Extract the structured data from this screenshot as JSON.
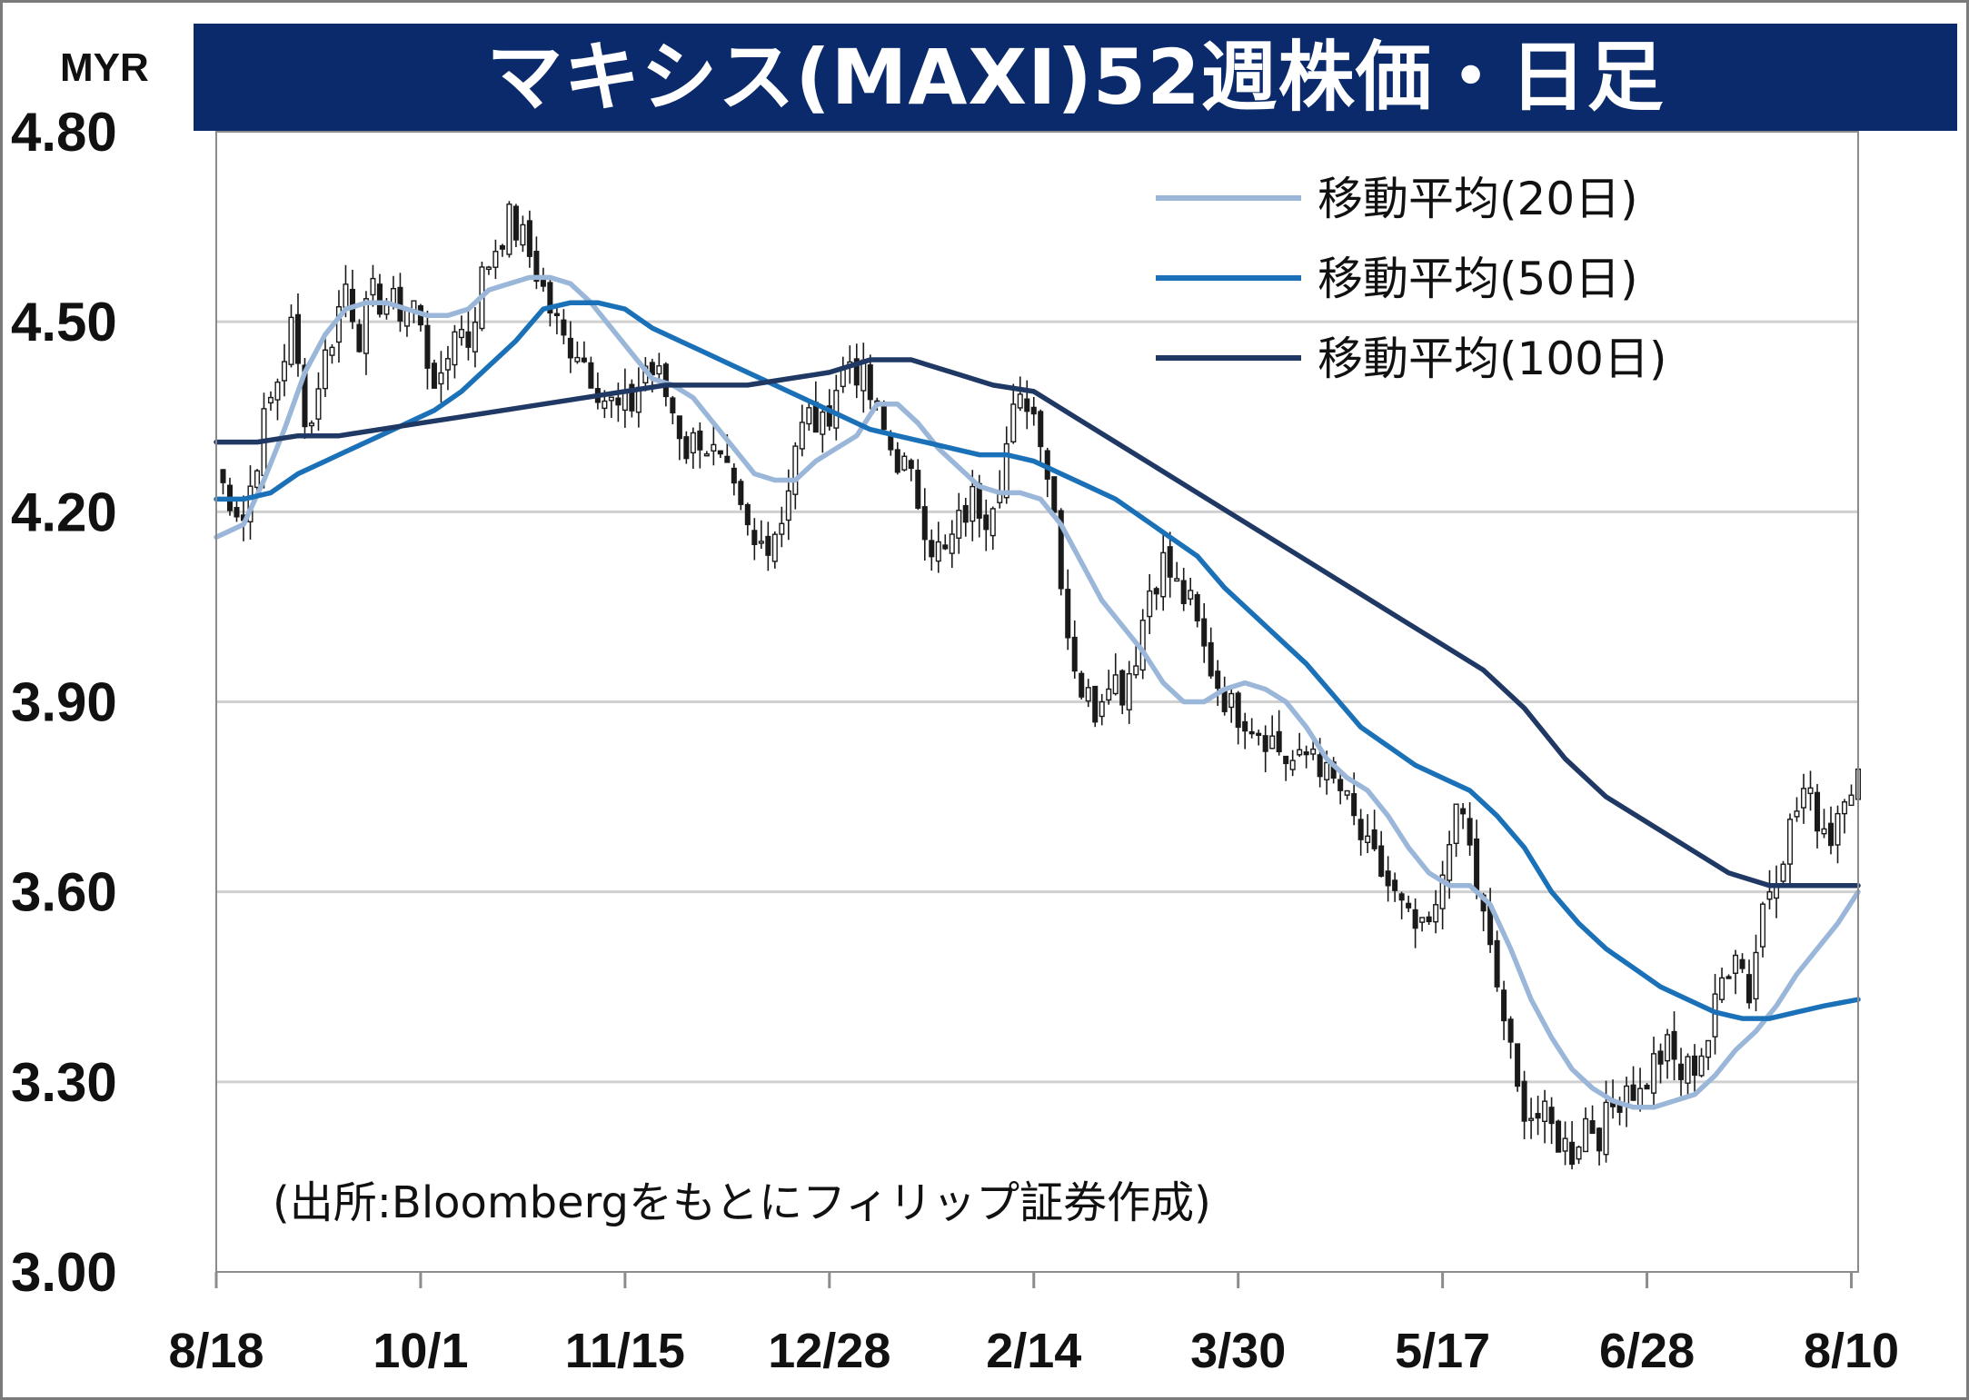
{
  "chart_data": {
    "type": "candlestick",
    "title": "マキシス(MAXI)52週株価・日足",
    "ylabel": "MYR",
    "ylim": [
      3.0,
      4.8
    ],
    "yticks": [
      "4.80",
      "4.50",
      "4.20",
      "3.90",
      "3.60",
      "3.30",
      "3.00"
    ],
    "ytick_values": [
      4.8,
      4.5,
      4.2,
      3.9,
      3.6,
      3.3,
      3.0
    ],
    "x_labels": [
      "8/18",
      "10/1",
      "11/15",
      "12/28",
      "2/14",
      "3/30",
      "5/17",
      "6/28",
      "8/10"
    ],
    "x_label_index": [
      0,
      30,
      60,
      90,
      120,
      150,
      180,
      210,
      240
    ],
    "grid": true,
    "legend_position": "top-right",
    "annotation": "(出所:Bloombergをもとにフィリップ証券作成)",
    "price_anchors": [
      [
        0,
        4.26
      ],
      [
        4,
        4.19
      ],
      [
        7,
        4.34
      ],
      [
        9,
        4.41
      ],
      [
        11,
        4.49
      ],
      [
        13,
        4.36
      ],
      [
        14,
        4.34
      ],
      [
        15,
        4.41
      ],
      [
        17,
        4.48
      ],
      [
        19,
        4.56
      ],
      [
        21,
        4.48
      ],
      [
        23,
        4.54
      ],
      [
        25,
        4.53
      ],
      [
        27,
        4.52
      ],
      [
        29,
        4.53
      ],
      [
        31,
        4.44
      ],
      [
        33,
        4.39
      ],
      [
        35,
        4.5
      ],
      [
        37,
        4.47
      ],
      [
        39,
        4.57
      ],
      [
        41,
        4.62
      ],
      [
        43,
        4.66
      ],
      [
        45,
        4.63
      ],
      [
        47,
        4.58
      ],
      [
        49,
        4.52
      ],
      [
        51,
        4.47
      ],
      [
        53,
        4.46
      ],
      [
        55,
        4.42
      ],
      [
        57,
        4.38
      ],
      [
        59,
        4.36
      ],
      [
        61,
        4.37
      ],
      [
        63,
        4.43
      ],
      [
        65,
        4.41
      ],
      [
        67,
        4.36
      ],
      [
        69,
        4.3
      ],
      [
        71,
        4.32
      ],
      [
        73,
        4.29
      ],
      [
        75,
        4.25
      ],
      [
        77,
        4.19
      ],
      [
        79,
        4.14
      ],
      [
        81,
        4.16
      ],
      [
        83,
        4.19
      ],
      [
        85,
        4.31
      ],
      [
        87,
        4.35
      ],
      [
        89,
        4.33
      ],
      [
        91,
        4.4
      ],
      [
        93,
        4.44
      ],
      [
        95,
        4.41
      ],
      [
        97,
        4.35
      ],
      [
        99,
        4.3
      ],
      [
        101,
        4.27
      ],
      [
        103,
        4.22
      ],
      [
        105,
        4.15
      ],
      [
        107,
        4.13
      ],
      [
        109,
        4.18
      ],
      [
        111,
        4.22
      ],
      [
        113,
        4.2
      ],
      [
        115,
        4.26
      ],
      [
        117,
        4.35
      ],
      [
        119,
        4.38
      ],
      [
        121,
        4.33
      ],
      [
        123,
        4.2
      ],
      [
        125,
        4.01
      ],
      [
        127,
        3.92
      ],
      [
        129,
        3.89
      ],
      [
        131,
        3.95
      ],
      [
        133,
        3.92
      ],
      [
        135,
        3.98
      ],
      [
        137,
        4.08
      ],
      [
        139,
        4.12
      ],
      [
        141,
        4.08
      ],
      [
        143,
        4.05
      ],
      [
        145,
        3.98
      ],
      [
        147,
        3.93
      ],
      [
        149,
        3.89
      ],
      [
        151,
        3.88
      ],
      [
        153,
        3.86
      ],
      [
        155,
        3.84
      ],
      [
        157,
        3.81
      ],
      [
        159,
        3.8
      ],
      [
        161,
        3.83
      ],
      [
        163,
        3.78
      ],
      [
        165,
        3.76
      ],
      [
        167,
        3.71
      ],
      [
        169,
        3.66
      ],
      [
        171,
        3.63
      ],
      [
        173,
        3.59
      ],
      [
        175,
        3.55
      ],
      [
        177,
        3.53
      ],
      [
        179,
        3.56
      ],
      [
        181,
        3.7
      ],
      [
        183,
        3.72
      ],
      [
        185,
        3.61
      ],
      [
        187,
        3.5
      ],
      [
        189,
        3.4
      ],
      [
        191,
        3.28
      ],
      [
        193,
        3.25
      ],
      [
        195,
        3.24
      ],
      [
        197,
        3.21
      ],
      [
        199,
        3.19
      ],
      [
        201,
        3.24
      ],
      [
        203,
        3.22
      ],
      [
        205,
        3.26
      ],
      [
        207,
        3.3
      ],
      [
        209,
        3.28
      ],
      [
        211,
        3.33
      ],
      [
        213,
        3.35
      ],
      [
        215,
        3.31
      ],
      [
        217,
        3.33
      ],
      [
        219,
        3.37
      ],
      [
        221,
        3.46
      ],
      [
        223,
        3.52
      ],
      [
        225,
        3.44
      ],
      [
        227,
        3.58
      ],
      [
        229,
        3.64
      ],
      [
        231,
        3.7
      ],
      [
        233,
        3.76
      ],
      [
        235,
        3.72
      ],
      [
        237,
        3.69
      ],
      [
        239,
        3.77
      ],
      [
        241,
        3.78
      ]
    ],
    "series": [
      {
        "name": "移動平均(20日)",
        "color": "#9ab6d8",
        "points": [
          [
            0,
            4.16
          ],
          [
            4,
            4.18
          ],
          [
            7,
            4.25
          ],
          [
            10,
            4.33
          ],
          [
            13,
            4.42
          ],
          [
            16,
            4.48
          ],
          [
            19,
            4.52
          ],
          [
            22,
            4.53
          ],
          [
            25,
            4.53
          ],
          [
            28,
            4.52
          ],
          [
            31,
            4.51
          ],
          [
            34,
            4.51
          ],
          [
            37,
            4.52
          ],
          [
            40,
            4.55
          ],
          [
            43,
            4.56
          ],
          [
            46,
            4.57
          ],
          [
            49,
            4.57
          ],
          [
            52,
            4.56
          ],
          [
            55,
            4.53
          ],
          [
            58,
            4.49
          ],
          [
            61,
            4.45
          ],
          [
            64,
            4.41
          ],
          [
            67,
            4.4
          ],
          [
            70,
            4.38
          ],
          [
            73,
            4.34
          ],
          [
            76,
            4.3
          ],
          [
            79,
            4.26
          ],
          [
            82,
            4.25
          ],
          [
            85,
            4.25
          ],
          [
            88,
            4.28
          ],
          [
            91,
            4.3
          ],
          [
            94,
            4.32
          ],
          [
            97,
            4.37
          ],
          [
            100,
            4.37
          ],
          [
            103,
            4.34
          ],
          [
            106,
            4.3
          ],
          [
            109,
            4.27
          ],
          [
            112,
            4.24
          ],
          [
            115,
            4.23
          ],
          [
            118,
            4.23
          ],
          [
            121,
            4.22
          ],
          [
            124,
            4.18
          ],
          [
            127,
            4.12
          ],
          [
            130,
            4.06
          ],
          [
            133,
            4.02
          ],
          [
            136,
            3.98
          ],
          [
            139,
            3.93
          ],
          [
            142,
            3.9
          ],
          [
            145,
            3.9
          ],
          [
            148,
            3.92
          ],
          [
            151,
            3.93
          ],
          [
            154,
            3.92
          ],
          [
            157,
            3.9
          ],
          [
            160,
            3.86
          ],
          [
            163,
            3.81
          ],
          [
            166,
            3.78
          ],
          [
            169,
            3.76
          ],
          [
            172,
            3.72
          ],
          [
            175,
            3.67
          ],
          [
            178,
            3.63
          ],
          [
            181,
            3.61
          ],
          [
            184,
            3.61
          ],
          [
            187,
            3.58
          ],
          [
            190,
            3.51
          ],
          [
            193,
            3.43
          ],
          [
            196,
            3.37
          ],
          [
            199,
            3.32
          ],
          [
            202,
            3.29
          ],
          [
            205,
            3.27
          ],
          [
            208,
            3.26
          ],
          [
            211,
            3.26
          ],
          [
            214,
            3.27
          ],
          [
            217,
            3.28
          ],
          [
            220,
            3.31
          ],
          [
            223,
            3.35
          ],
          [
            226,
            3.38
          ],
          [
            229,
            3.42
          ],
          [
            232,
            3.47
          ],
          [
            235,
            3.51
          ],
          [
            238,
            3.55
          ],
          [
            241,
            3.6
          ]
        ]
      },
      {
        "name": "移動平均(50日)",
        "color": "#1b71b8",
        "points": [
          [
            0,
            4.22
          ],
          [
            4,
            4.22
          ],
          [
            8,
            4.23
          ],
          [
            12,
            4.26
          ],
          [
            16,
            4.28
          ],
          [
            20,
            4.3
          ],
          [
            24,
            4.32
          ],
          [
            28,
            4.34
          ],
          [
            32,
            4.36
          ],
          [
            36,
            4.39
          ],
          [
            40,
            4.43
          ],
          [
            44,
            4.47
          ],
          [
            48,
            4.52
          ],
          [
            52,
            4.53
          ],
          [
            56,
            4.53
          ],
          [
            60,
            4.52
          ],
          [
            64,
            4.49
          ],
          [
            68,
            4.47
          ],
          [
            72,
            4.45
          ],
          [
            76,
            4.43
          ],
          [
            80,
            4.41
          ],
          [
            84,
            4.39
          ],
          [
            88,
            4.37
          ],
          [
            92,
            4.35
          ],
          [
            96,
            4.33
          ],
          [
            100,
            4.32
          ],
          [
            104,
            4.31
          ],
          [
            108,
            4.3
          ],
          [
            112,
            4.29
          ],
          [
            116,
            4.29
          ],
          [
            120,
            4.28
          ],
          [
            124,
            4.26
          ],
          [
            128,
            4.24
          ],
          [
            132,
            4.22
          ],
          [
            136,
            4.19
          ],
          [
            140,
            4.16
          ],
          [
            144,
            4.13
          ],
          [
            148,
            4.08
          ],
          [
            152,
            4.04
          ],
          [
            156,
            4.0
          ],
          [
            160,
            3.96
          ],
          [
            164,
            3.91
          ],
          [
            168,
            3.86
          ],
          [
            172,
            3.83
          ],
          [
            176,
            3.8
          ],
          [
            180,
            3.78
          ],
          [
            184,
            3.76
          ],
          [
            188,
            3.72
          ],
          [
            192,
            3.67
          ],
          [
            196,
            3.6
          ],
          [
            200,
            3.55
          ],
          [
            204,
            3.51
          ],
          [
            208,
            3.48
          ],
          [
            212,
            3.45
          ],
          [
            216,
            3.43
          ],
          [
            220,
            3.41
          ],
          [
            224,
            3.4
          ],
          [
            228,
            3.4
          ],
          [
            232,
            3.41
          ],
          [
            236,
            3.42
          ],
          [
            241,
            3.43
          ]
        ]
      },
      {
        "name": "移動平均(100日)",
        "color": "#1f3864",
        "points": [
          [
            0,
            4.31
          ],
          [
            6,
            4.31
          ],
          [
            12,
            4.32
          ],
          [
            18,
            4.32
          ],
          [
            24,
            4.33
          ],
          [
            30,
            4.34
          ],
          [
            36,
            4.35
          ],
          [
            42,
            4.36
          ],
          [
            48,
            4.37
          ],
          [
            54,
            4.38
          ],
          [
            60,
            4.39
          ],
          [
            66,
            4.4
          ],
          [
            72,
            4.4
          ],
          [
            78,
            4.4
          ],
          [
            84,
            4.41
          ],
          [
            90,
            4.42
          ],
          [
            96,
            4.44
          ],
          [
            102,
            4.44
          ],
          [
            108,
            4.42
          ],
          [
            114,
            4.4
          ],
          [
            120,
            4.39
          ],
          [
            126,
            4.35
          ],
          [
            132,
            4.31
          ],
          [
            138,
            4.27
          ],
          [
            144,
            4.23
          ],
          [
            150,
            4.19
          ],
          [
            156,
            4.15
          ],
          [
            162,
            4.11
          ],
          [
            168,
            4.07
          ],
          [
            174,
            4.03
          ],
          [
            180,
            3.99
          ],
          [
            186,
            3.95
          ],
          [
            192,
            3.89
          ],
          [
            198,
            3.81
          ],
          [
            204,
            3.75
          ],
          [
            210,
            3.71
          ],
          [
            216,
            3.67
          ],
          [
            222,
            3.63
          ],
          [
            228,
            3.61
          ],
          [
            234,
            3.61
          ],
          [
            241,
            3.61
          ]
        ]
      }
    ]
  }
}
